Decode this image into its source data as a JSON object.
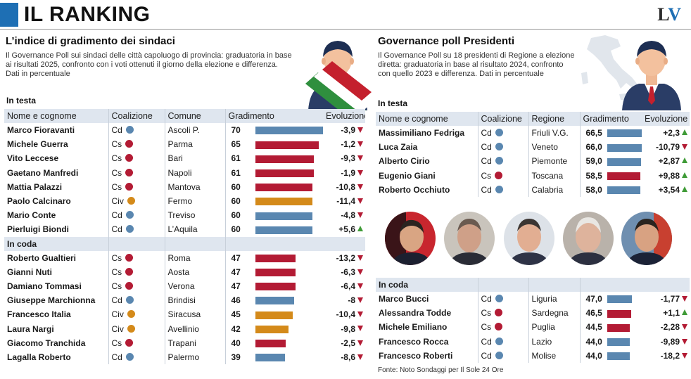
{
  "header": {
    "title": "IL RANKING",
    "logo_l": "L",
    "logo_v": "V"
  },
  "left": {
    "title": "L’indice di gradimento dei sindaci",
    "desc_lines": [
      "Il Governance Poll sui sindaci delle città capoluogo di provincia: graduatoria in base",
      "ai risultati 2025, confronto con i voti ottenuti il giorno della elezione e differenza.",
      "Dati in percentuale"
    ],
    "section_top": "In testa",
    "section_bottom": "In coda",
    "columns": [
      "Nome e cognome",
      "Coalizione",
      "Comune",
      "Gradimento",
      "Evoluzione"
    ]
  },
  "right": {
    "title": "Governance poll Presidenti",
    "desc_lines": [
      "Il Governance Poll su 18 presidenti di Regione a elezione",
      "diretta: graduatoria in base al risultato 2024, confronto",
      "con quello 2023 e differenza. Dati in percentuale"
    ],
    "section_top": "In testa",
    "section_bottom": "In coda",
    "columns": [
      "Nome e cognome",
      "Coalizione",
      "Regione",
      "Gradimento",
      "Evoluzione"
    ]
  },
  "colors": {
    "Cd": "#5a87b0",
    "Cs": "#b31b34",
    "Civ": "#d48a1a",
    "up": "#3f9b37",
    "down": "#b31b34",
    "header_bg": "#dfe6ef",
    "brand": "#1e6fb4"
  },
  "source": "Fonte: Noto Sondaggi per Il Sole 24 Ore",
  "chart_data": [
    {
      "type": "table",
      "title": "L’indice di gradimento dei sindaci",
      "columns": [
        "Nome e cognome",
        "Coalizione",
        "Comune",
        "Gradimento",
        "Evoluzione"
      ],
      "top": [
        {
          "name": "Marco Fioravanti",
          "coal": "Cd",
          "place": "Ascoli P.",
          "value": "70",
          "evo": "-3,9",
          "dir": "down"
        },
        {
          "name": "Michele Guerra",
          "coal": "Cs",
          "place": "Parma",
          "value": "65",
          "evo": "-1,2",
          "dir": "down"
        },
        {
          "name": "Vito Leccese",
          "coal": "Cs",
          "place": "Bari",
          "value": "61",
          "evo": "-9,3",
          "dir": "down"
        },
        {
          "name": "Gaetano Manfredi",
          "coal": "Cs",
          "place": "Napoli",
          "value": "61",
          "evo": "-1,9",
          "dir": "down"
        },
        {
          "name": "Mattia Palazzi",
          "coal": "Cs",
          "place": "Mantova",
          "value": "60",
          "evo": "-10,8",
          "dir": "down"
        },
        {
          "name": "Paolo Calcinaro",
          "coal": "Civ",
          "place": "Fermo",
          "value": "60",
          "evo": "-11,4",
          "dir": "down"
        },
        {
          "name": "Mario Conte",
          "coal": "Cd",
          "place": "Treviso",
          "value": "60",
          "evo": "-4,8",
          "dir": "down"
        },
        {
          "name": "Pierluigi Biondi",
          "coal": "Cd",
          "place": "L’Aquila",
          "value": "60",
          "evo": "+5,6",
          "dir": "up"
        }
      ],
      "bottom": [
        {
          "name": "Roberto Gualtieri",
          "coal": "Cs",
          "place": "Roma",
          "value": "47",
          "evo": "-13,2",
          "dir": "down"
        },
        {
          "name": "Gianni Nuti",
          "coal": "Cs",
          "place": "Aosta",
          "value": "47",
          "evo": "-6,3",
          "dir": "down"
        },
        {
          "name": "Damiano Tommasi",
          "coal": "Cs",
          "place": "Verona",
          "value": "47",
          "evo": "-6,4",
          "dir": "down"
        },
        {
          "name": "Giuseppe Marchionna",
          "coal": "Cd",
          "place": "Brindisi",
          "value": "46",
          "evo": "-8",
          "dir": "down"
        },
        {
          "name": "Francesco Italia",
          "coal": "Civ",
          "place": "Siracusa",
          "value": "45",
          "evo": "-10,4",
          "dir": "down"
        },
        {
          "name": "Laura Nargi",
          "coal": "Civ",
          "place": "Avellinio",
          "value": "42",
          "evo": "-9,8",
          "dir": "down"
        },
        {
          "name": "Giacomo Tranchida",
          "coal": "Cs",
          "place": "Trapani",
          "value": "40",
          "evo": "-2,5",
          "dir": "down"
        },
        {
          "name": "Lagalla Roberto",
          "coal": "Cd",
          "place": "Palermo",
          "value": "39",
          "evo": "-8,6",
          "dir": "down"
        }
      ]
    },
    {
      "type": "table",
      "title": "Governance poll Presidenti",
      "columns": [
        "Nome e cognome",
        "Coalizione",
        "Regione",
        "Gradimento",
        "Evoluzione"
      ],
      "top": [
        {
          "name": "Massimiliano Fedriga",
          "coal": "Cd",
          "place": "Friuli V.G.",
          "value": "66,5",
          "evo": "+2,3",
          "dir": "up"
        },
        {
          "name": "Luca Zaia",
          "coal": "Cd",
          "place": "Veneto",
          "value": "66,0",
          "evo": "-10,79",
          "dir": "down"
        },
        {
          "name": "Alberto Cirio",
          "coal": "Cd",
          "place": "Piemonte",
          "value": "59,0",
          "evo": "+2,87",
          "dir": "up"
        },
        {
          "name": "Eugenio Giani",
          "coal": "Cs",
          "place": "Toscana",
          "value": "58,5",
          "evo": "+9,88",
          "dir": "up"
        },
        {
          "name": "Roberto Occhiuto",
          "coal": "Cd",
          "place": "Calabria",
          "value": "58,0",
          "evo": "+3,54",
          "dir": "up"
        }
      ],
      "bottom": [
        {
          "name": "Marco Bucci",
          "coal": "Cd",
          "place": "Liguria",
          "value": "47,0",
          "evo": "-1,77",
          "dir": "down"
        },
        {
          "name": "Alessandra Todde",
          "coal": "Cs",
          "place": "Sardegna",
          "value": "46,5",
          "evo": "+1,1",
          "dir": "up"
        },
        {
          "name": "Michele Emiliano",
          "coal": "Cs",
          "place": "Puglia",
          "value": "44,5",
          "evo": "-2,28",
          "dir": "down"
        },
        {
          "name": "Francesco Rocca",
          "coal": "Cd",
          "place": "Lazio",
          "value": "44,0",
          "evo": "-9,89",
          "dir": "down"
        },
        {
          "name": "Francesco Roberti",
          "coal": "Cd",
          "place": "Molise",
          "value": "44,0",
          "evo": "-18,2",
          "dir": "down"
        }
      ]
    }
  ]
}
